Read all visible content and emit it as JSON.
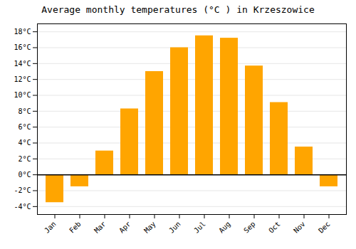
{
  "chart_data": {
    "type": "bar",
    "title": "Average monthly temperatures (°C ) in Krzeszowice",
    "categories": [
      "Jan",
      "Feb",
      "Mar",
      "Apr",
      "May",
      "Jun",
      "Jul",
      "Aug",
      "Sep",
      "Oct",
      "Nov",
      "Dec"
    ],
    "values": [
      -3.5,
      -1.5,
      3.0,
      8.3,
      13.0,
      16.0,
      17.5,
      17.2,
      13.7,
      9.1,
      3.5,
      -1.5
    ],
    "color": "#FFA500",
    "ylim": [
      -5,
      19
    ],
    "yticks": [
      {
        "value": -4,
        "label": "-4°C"
      },
      {
        "value": -2,
        "label": "-2°C"
      },
      {
        "value": 0,
        "label": "0°C"
      },
      {
        "value": 2,
        "label": "2°C"
      },
      {
        "value": 4,
        "label": "4°C"
      },
      {
        "value": 6,
        "label": "6°C"
      },
      {
        "value": 8,
        "label": "8°C"
      },
      {
        "value": 10,
        "label": "10°C"
      },
      {
        "value": 12,
        "label": "12°C"
      },
      {
        "value": 14,
        "label": "14°C"
      },
      {
        "value": 16,
        "label": "16°C"
      },
      {
        "value": 18,
        "label": "18°C"
      }
    ],
    "grid": true
  }
}
